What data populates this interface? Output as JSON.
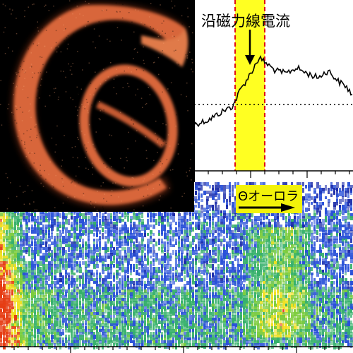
{
  "line_panel": {
    "annotation": "沿磁力線電流",
    "colors": {
      "highlight": "#ffff22",
      "boundary": "#e01010",
      "trace": "#000000",
      "reference": "#000000"
    }
  },
  "spectrogram_panel": {
    "annotation": "Θオーロラ",
    "colors": {
      "label_bg": "#f2f20a",
      "background": "#ffffff",
      "low": "#1a2aa8",
      "mid": "#35b06a",
      "high": "#f0e020",
      "peak": "#e53a10"
    }
  },
  "aurora_image": {
    "colors": {
      "background": "#000000",
      "oval": "#d8663a",
      "glow": "#f2a070"
    }
  }
}
